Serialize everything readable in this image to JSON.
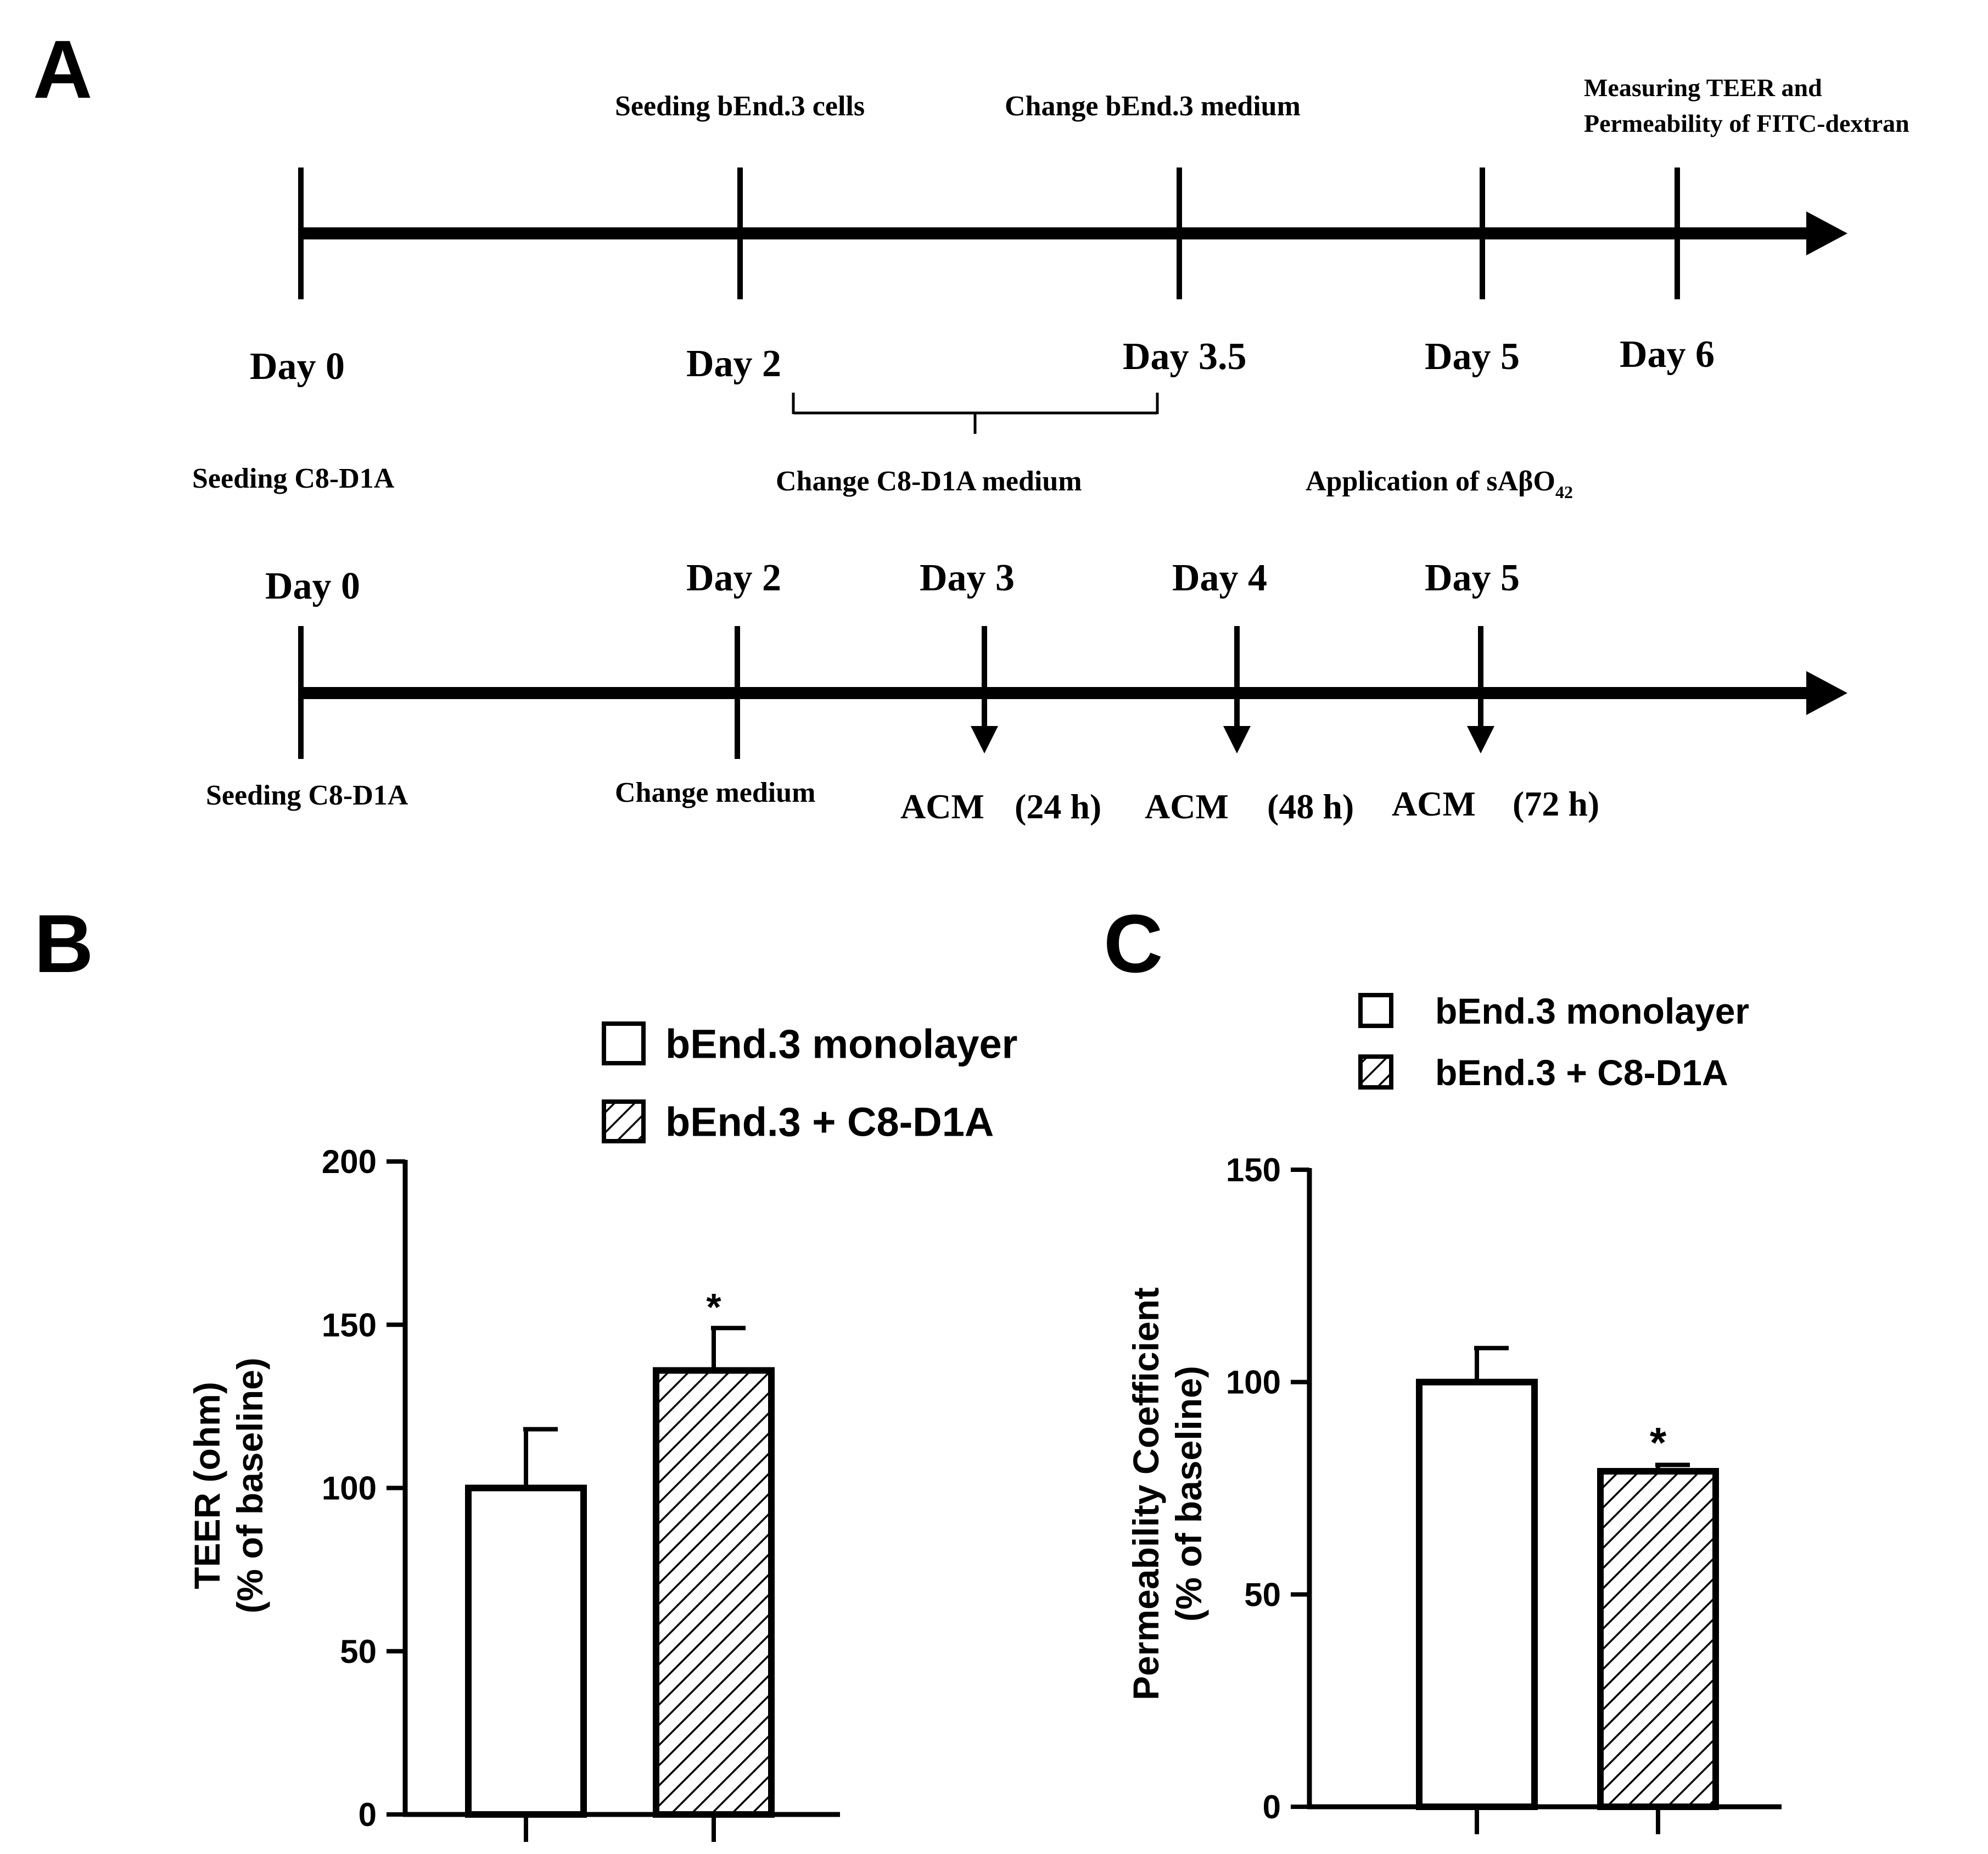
{
  "panels": {
    "a": "A",
    "b": "B",
    "c": "C"
  },
  "timeline_top": {
    "above": {
      "seed_bend": "Seeding bEnd.3 cells",
      "change_bend": "Change bEnd.3 medium",
      "measure_1": "Measuring TEER and",
      "measure_2": "Permeability of FITC-dextran"
    },
    "days": {
      "d0": "Day 0",
      "d2": "Day 2",
      "d35": "Day 3.5",
      "d5": "Day 5",
      "d6": "Day 6"
    },
    "below": {
      "seed_c8": "Seeding C8-D1A",
      "change_c8": "Change C8-D1A medium",
      "application_prefix": "Application of sAβO",
      "application_sub": "42"
    }
  },
  "timeline_bottom": {
    "days": {
      "d0": "Day 0",
      "d2": "Day 2",
      "d3": "Day 3",
      "d4": "Day 4",
      "d5": "Day 5"
    },
    "below": {
      "seed_c8": "Seeding C8-D1A",
      "change": "Change medium",
      "acm1": "ACM",
      "acm1_time": "(24 h)",
      "acm2": "ACM",
      "acm2_time": "(48 h)",
      "acm3": "ACM",
      "acm3_time": "(72 h)"
    }
  },
  "chart_data": [
    {
      "panel": "B",
      "type": "bar",
      "categories": [
        "bEnd.3 monolayer",
        "bEnd.3 + C8-D1A"
      ],
      "values": [
        100,
        136
      ],
      "errors": [
        18,
        13
      ],
      "patterns": [
        "open",
        "hatched"
      ],
      "significance": [
        "",
        "*"
      ],
      "ylabel_line1": "TEER (ohm)",
      "ylabel_line2": "(% of baseline)",
      "ylim": [
        0,
        200
      ],
      "yticks": [
        0,
        50,
        100,
        150,
        200
      ],
      "legend": [
        "bEnd.3 monolayer",
        "bEnd.3 + C8-D1A"
      ],
      "legend_position": "top-right"
    },
    {
      "panel": "C",
      "type": "bar",
      "categories": [
        "bEnd.3 monolayer",
        "bEnd.3 + C8-D1A"
      ],
      "values": [
        100,
        79
      ],
      "errors": [
        8,
        1.5
      ],
      "patterns": [
        "open",
        "hatched"
      ],
      "significance": [
        "",
        "*"
      ],
      "ylabel_line1": "Permeability Coefficient",
      "ylabel_line2": "(% of baseline)",
      "ylim": [
        0,
        150
      ],
      "yticks": [
        0,
        50,
        100,
        150
      ],
      "legend": [
        "bEnd.3 monolayer",
        "bEnd.3 + C8-D1A"
      ],
      "legend_position": "top-right"
    }
  ]
}
